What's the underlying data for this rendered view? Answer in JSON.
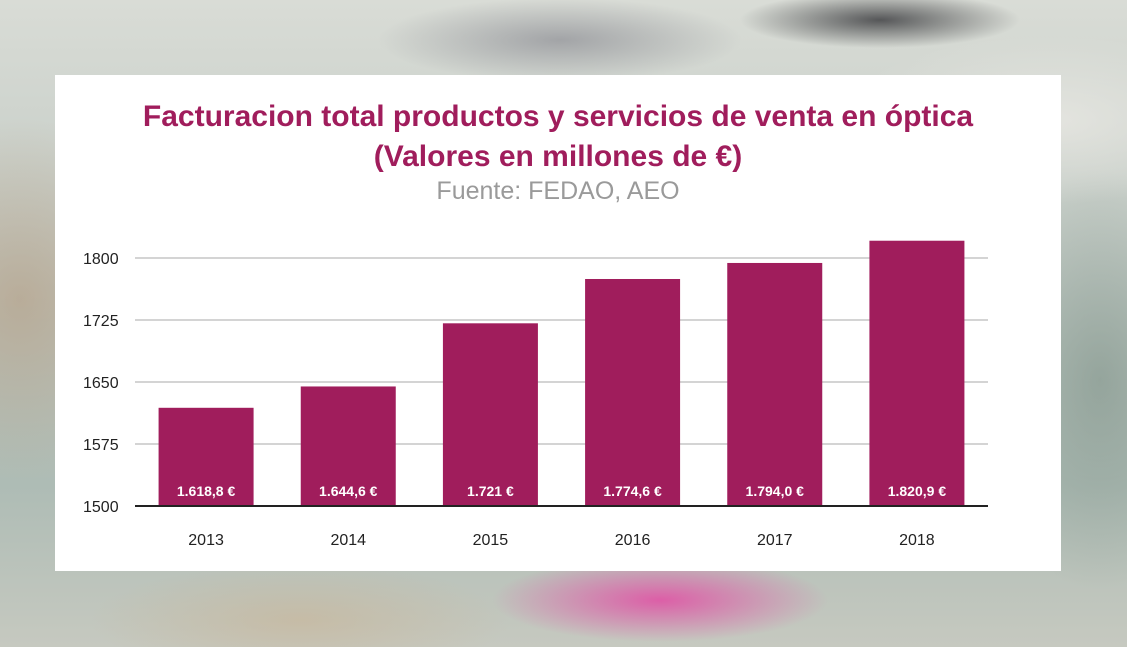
{
  "colors": {
    "bar": "#a01d5c",
    "title": "#a01d5c",
    "source": "#9a9a9a",
    "grid": "#aaaaaa",
    "axis": "#222222"
  },
  "chart_data": {
    "type": "bar",
    "title_line1": "Facturacion total productos y servicios de venta en óptica",
    "title_line2": "(Valores en millones de €)",
    "subtitle": "Fuente: FEDAO, AEO",
    "xlabel": "",
    "ylabel": "",
    "categories": [
      "2013",
      "2014",
      "2015",
      "2016",
      "2017",
      "2018"
    ],
    "values": [
      1618.8,
      1644.6,
      1721,
      1774.6,
      1794.0,
      1820.9
    ],
    "data_labels": [
      "1.618,8 €",
      "1.644,6 €",
      "1.721 €",
      "1.774,6 €",
      "1.794,0 €",
      "1.820,9 €"
    ],
    "yticks": [
      1500,
      1575,
      1650,
      1725,
      1800
    ],
    "ylim": [
      1500,
      1800
    ],
    "grid": true
  }
}
